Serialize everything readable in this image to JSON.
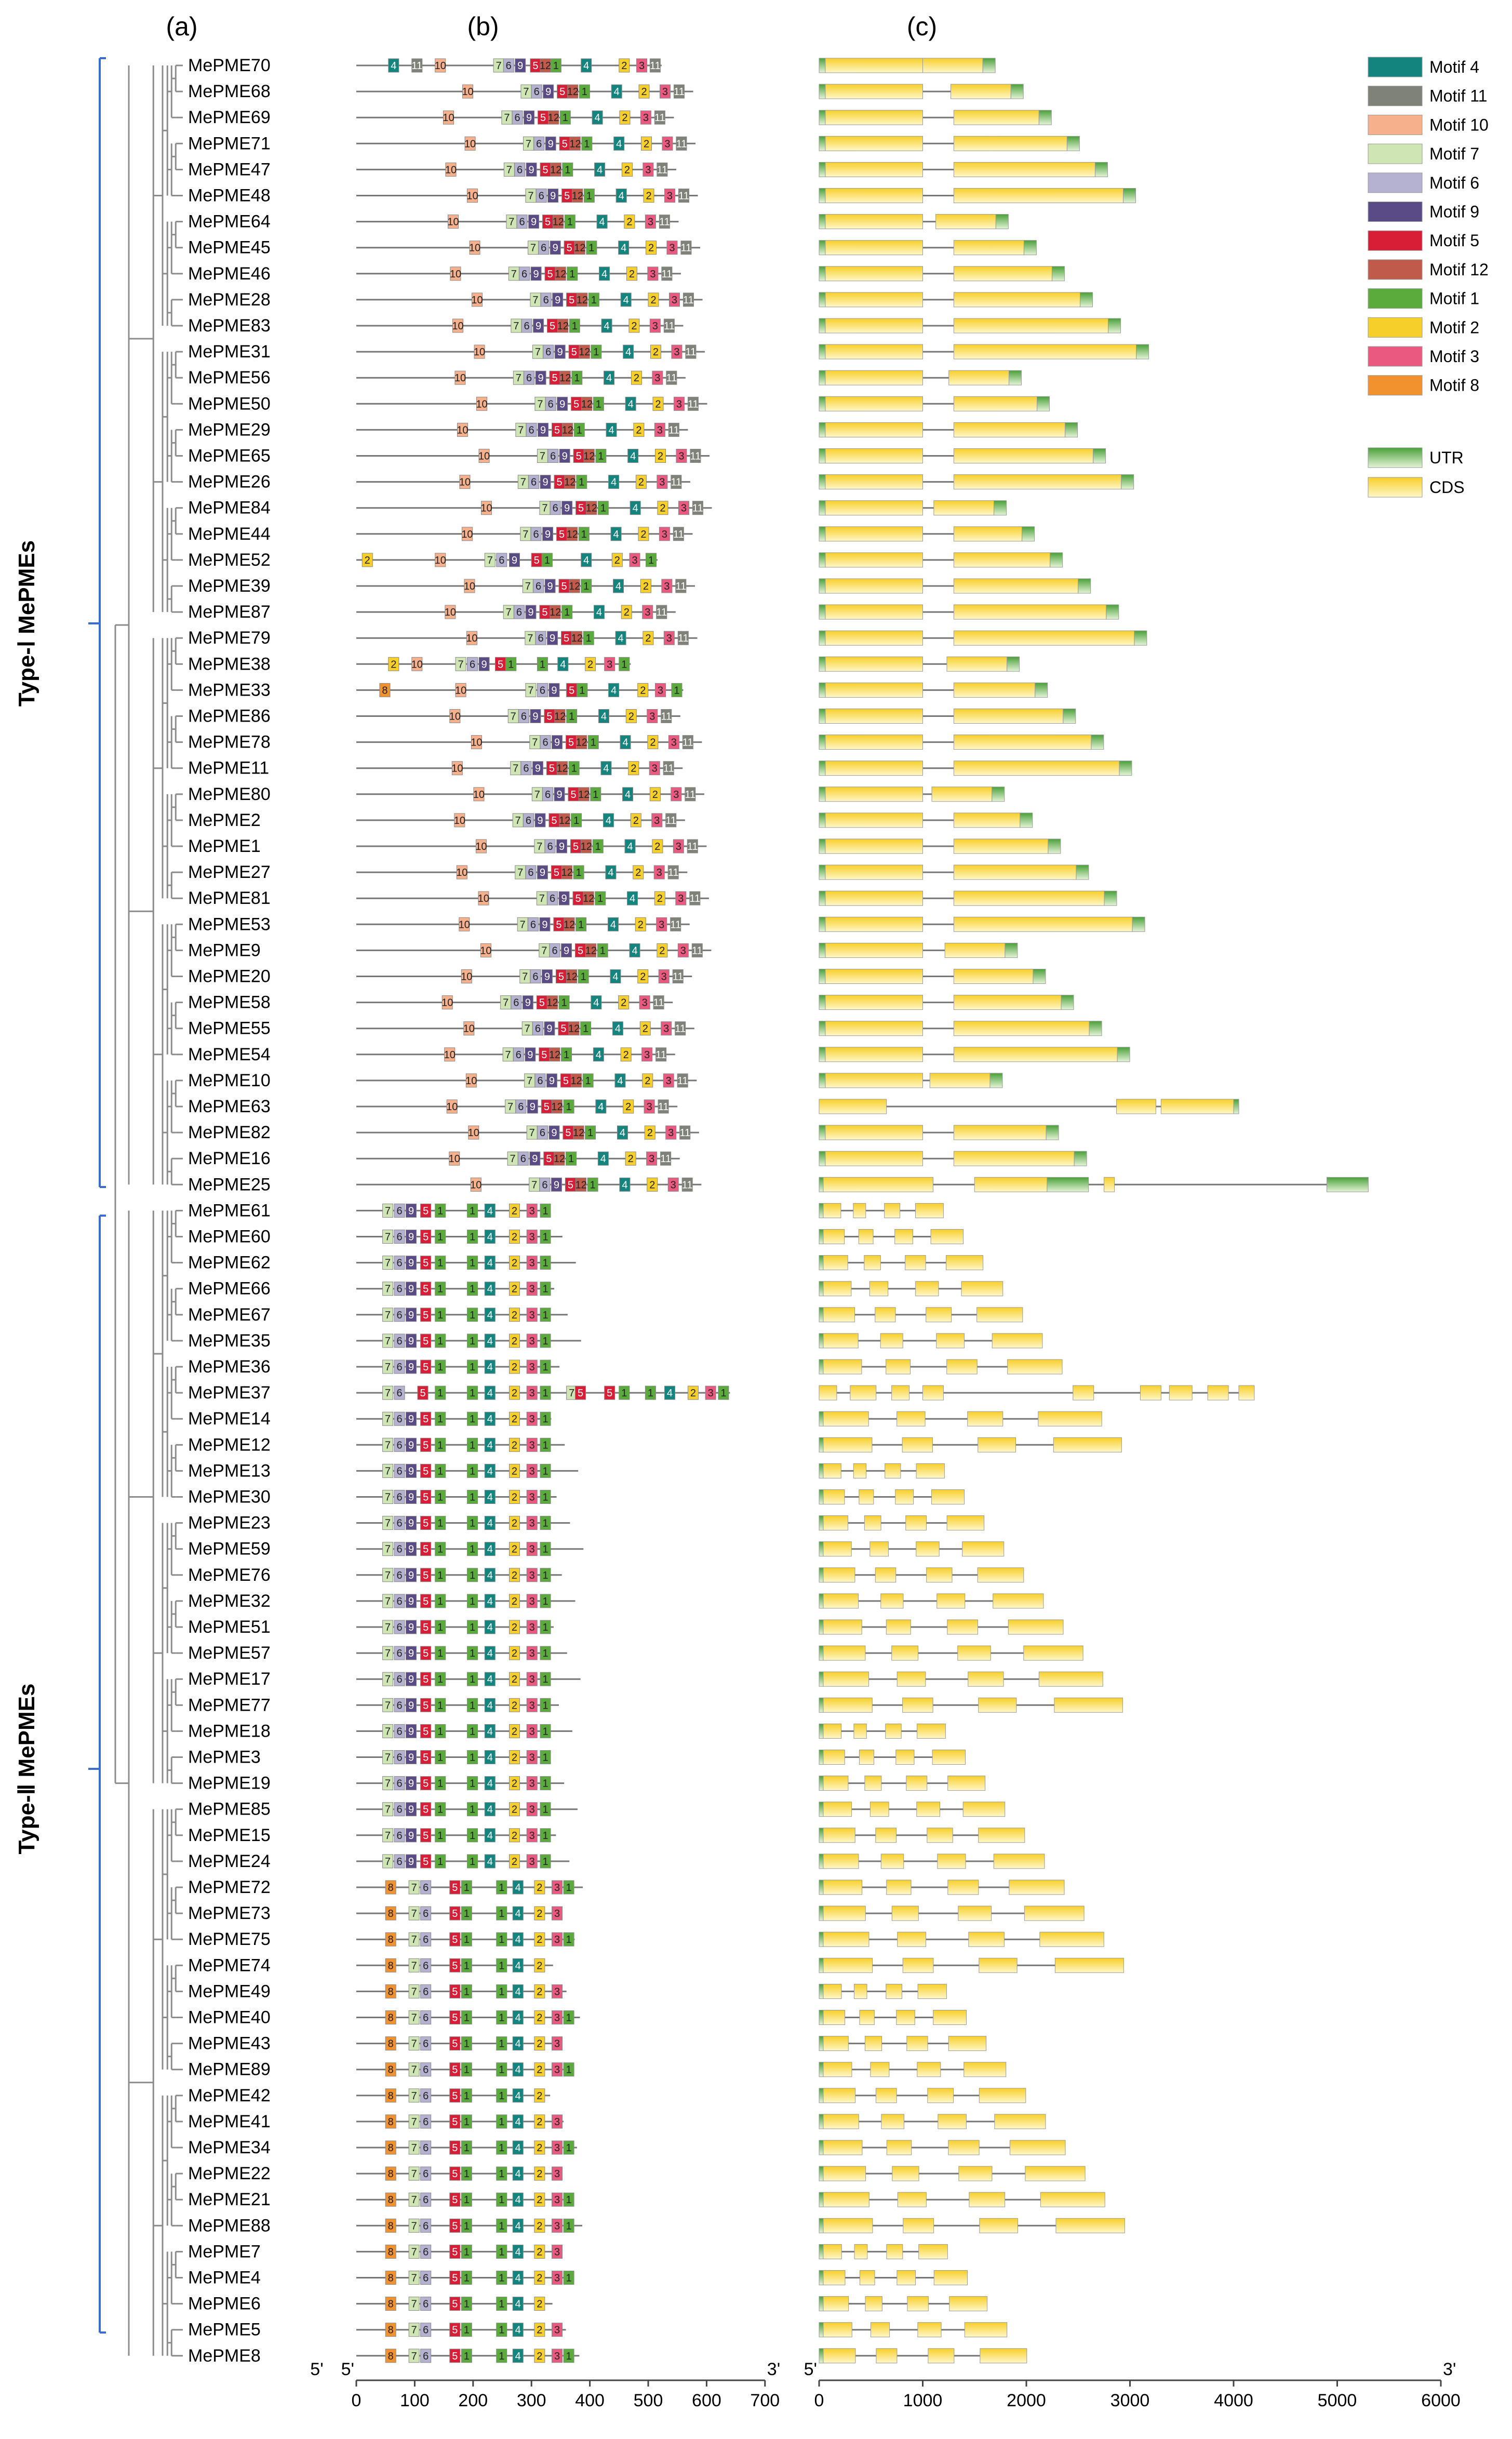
{
  "panels": {
    "a": "(a)",
    "b": "(b)",
    "c": "(c)"
  },
  "types": {
    "type1": "Type-Ⅰ MePMEs",
    "type2": "Type-Ⅱ MePMEs"
  },
  "genes": [
    "MePME70",
    "MePME68",
    "MePME69",
    "MePME71",
    "MePME47",
    "MePME48",
    "MePME64",
    "MePME45",
    "MePME46",
    "MePME28",
    "MePME83",
    "MePME31",
    "MePME56",
    "MePME50",
    "MePME29",
    "MePME65",
    "MePME26",
    "MePME84",
    "MePME44",
    "MePME52",
    "MePME39",
    "MePME87",
    "MePME79",
    "MePME38",
    "MePME33",
    "MePME86",
    "MePME78",
    "MePME11",
    "MePME80",
    "MePME2",
    "MePME1",
    "MePME27",
    "MePME81",
    "MePME53",
    "MePME9",
    "MePME20",
    "MePME58",
    "MePME55",
    "MePME54",
    "MePME10",
    "MePME63",
    "MePME82",
    "MePME16",
    "MePME25",
    "MePME61",
    "MePME60",
    "MePME62",
    "MePME66",
    "MePME67",
    "MePME35",
    "MePME36",
    "MePME37",
    "MePME14",
    "MePME12",
    "MePME13",
    "MePME30",
    "MePME23",
    "MePME59",
    "MePME76",
    "MePME32",
    "MePME51",
    "MePME57",
    "MePME17",
    "MePME77",
    "MePME18",
    "MePME3",
    "MePME19",
    "MePME85",
    "MePME15",
    "MePME24",
    "MePME72",
    "MePME73",
    "MePME75",
    "MePME74",
    "MePME49",
    "MePME40",
    "MePME43",
    "MePME89",
    "MePME42",
    "MePME41",
    "MePME34",
    "MePME22",
    "MePME21",
    "MePME88",
    "MePME7",
    "MePME4",
    "MePME6",
    "MePME5",
    "MePME8"
  ],
  "legend": {
    "motifs": [
      {
        "label": "Motif 4",
        "num": "4",
        "color": "#14857e"
      },
      {
        "label": "Motif 11",
        "num": "11",
        "color": "#7e8278"
      },
      {
        "label": "Motif 10",
        "num": "10",
        "color": "#f6b08c"
      },
      {
        "label": "Motif 7",
        "num": "7",
        "color": "#cfe6b4"
      },
      {
        "label": "Motif 6",
        "num": "6",
        "color": "#b4b2d0"
      },
      {
        "label": "Motif 9",
        "num": "9",
        "color": "#5a4a86"
      },
      {
        "label": "Motif 5",
        "num": "5",
        "color": "#d81e36"
      },
      {
        "label": "Motif 12",
        "num": "12",
        "color": "#c05a4a"
      },
      {
        "label": "Motif 1",
        "num": "1",
        "color": "#5aaa3c"
      },
      {
        "label": "Motif 2",
        "num": "2",
        "color": "#f7cf2a"
      },
      {
        "label": "Motif 3",
        "num": "3",
        "color": "#ea5a80"
      },
      {
        "label": "Motif 8",
        "num": "8",
        "color": "#f2922e"
      }
    ],
    "structure": [
      {
        "label": "UTR",
        "color": "#5aaa3c"
      },
      {
        "label": "CDS",
        "color": "#f7cf2a"
      }
    ]
  },
  "axis_b": {
    "start": "5'",
    "end": "3'",
    "ticks": [
      "0",
      "100",
      "200",
      "300",
      "400",
      "500",
      "600",
      "700"
    ]
  },
  "axis_c": {
    "start": "5'",
    "end": "3'",
    "ticks": [
      "0",
      "1000",
      "2000",
      "3000",
      "4000",
      "5000",
      "6000"
    ]
  }
}
